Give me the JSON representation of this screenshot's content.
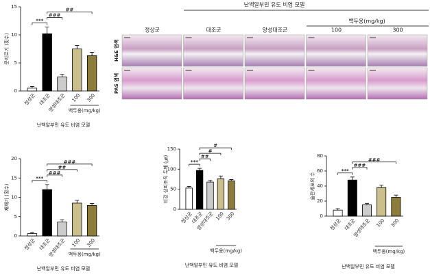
{
  "chart_data": [
    {
      "type": "bar",
      "ylabel": "문지르기 (횟수)",
      "categories": [
        "정상군",
        "대조군",
        "양성대조군",
        "100",
        "300"
      ],
      "values": [
        0.5,
        10.2,
        2.5,
        7.5,
        6.3
      ],
      "errors": [
        0.3,
        1.2,
        0.5,
        0.6,
        0.6
      ],
      "colors": [
        "#ffffff",
        "#000000",
        "#cccccc",
        "#cbbf8c",
        "#8c7d3c"
      ],
      "ylim": [
        0,
        15
      ],
      "yticks": [
        0,
        5,
        10,
        15
      ],
      "group_label": "백두옹(mg/kg)",
      "xlabel": "난백알부민 유도 비염 모델",
      "annotations": [
        "***",
        "###",
        "##"
      ]
    },
    {
      "type": "bar",
      "ylabel": "재채기 (횟수)",
      "categories": [
        "정상군",
        "대조군",
        "양성대조군",
        "100",
        "300"
      ],
      "values": [
        0.6,
        12,
        3.6,
        8.5,
        7.9
      ],
      "errors": [
        0.3,
        1.3,
        0.6,
        0.7,
        0.5
      ],
      "colors": [
        "#ffffff",
        "#000000",
        "#cccccc",
        "#cbbf8c",
        "#8c7d3c"
      ],
      "ylim": [
        0,
        20
      ],
      "yticks": [
        0,
        5,
        10,
        15,
        20
      ],
      "group_label": "백두옹(mg/kg)",
      "xlabel": "난백알부민 유도 비염 모델",
      "annotations": [
        "***",
        "###",
        "##",
        "###"
      ]
    },
    {
      "type": "bar",
      "ylabel": "비강 상피조직 두께 (㎛)",
      "categories": [
        "정상군",
        "대조군",
        "양성대조군",
        "100",
        "300"
      ],
      "values": [
        53,
        97,
        68,
        76,
        71
      ],
      "errors": [
        4,
        5,
        4,
        7,
        3
      ],
      "colors": [
        "#ffffff",
        "#000000",
        "#cccccc",
        "#cbbf8c",
        "#8c7d3c"
      ],
      "ylim": [
        0,
        150
      ],
      "yticks": [
        0,
        50,
        100,
        150
      ],
      "group_label": "백두옹(mg/kg)",
      "xlabel": "난백알부민 유도 비염 모델",
      "annotations": [
        "***",
        "##",
        "#",
        "#"
      ]
    },
    {
      "type": "bar",
      "ylabel": "술잔세포의 수",
      "categories": [
        "정상군",
        "대조군",
        "양성대조군",
        "100",
        "300"
      ],
      "values": [
        8,
        48,
        15,
        38,
        25
      ],
      "errors": [
        2,
        4,
        2,
        3,
        3
      ],
      "colors": [
        "#ffffff",
        "#000000",
        "#cccccc",
        "#cbbf8c",
        "#8c7d3c"
      ],
      "ylim": [
        0,
        80
      ],
      "yticks": [
        0,
        20,
        40,
        60,
        80
      ],
      "group_label": "백두옹(mg/kg)",
      "xlabel": "난백알부민 유도 비염 모델",
      "annotations": [
        "***",
        "###",
        "###"
      ]
    }
  ],
  "histology": {
    "title": "난백알부민 유도 비염 모델",
    "group_label": "백두옹(mg/kg)",
    "columns": [
      "정상군",
      "대조군",
      "양성대조군",
      "100",
      "300"
    ],
    "rows": [
      "H&E 염색",
      "PAS 염색"
    ]
  }
}
